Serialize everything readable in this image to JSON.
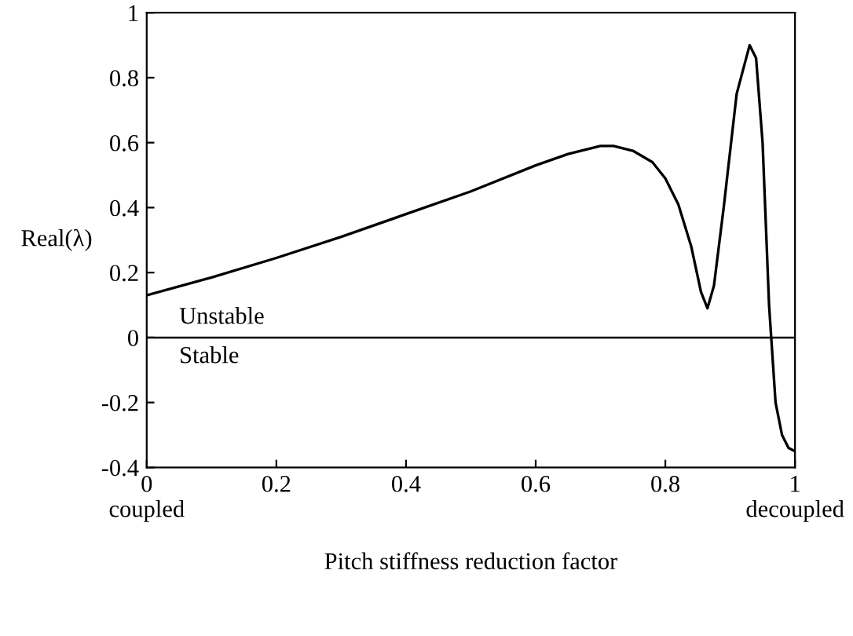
{
  "chart_data": {
    "type": "line",
    "xlabel": "Pitch stiffness reduction factor",
    "ylabel": "Real(λ)",
    "x": [
      0,
      0.1,
      0.2,
      0.3,
      0.4,
      0.5,
      0.6,
      0.65,
      0.7,
      0.72,
      0.75,
      0.78,
      0.8,
      0.82,
      0.84,
      0.855,
      0.865,
      0.875,
      0.89,
      0.91,
      0.93,
      0.94,
      0.95,
      0.96,
      0.965,
      0.97,
      0.98,
      0.99,
      1.0
    ],
    "series": [
      {
        "color": "#000000",
        "values": [
          0.13,
          0.185,
          0.245,
          0.31,
          0.38,
          0.45,
          0.53,
          0.565,
          0.59,
          0.59,
          0.575,
          0.54,
          0.49,
          0.41,
          0.28,
          0.14,
          0.09,
          0.16,
          0.4,
          0.75,
          0.9,
          0.86,
          0.6,
          0.1,
          -0.05,
          -0.2,
          -0.3,
          -0.34,
          -0.35
        ]
      }
    ],
    "xlim": [
      0,
      1
    ],
    "ylim": [
      -0.4,
      1
    ],
    "xticks": [
      {
        "value": 0,
        "label": "0\ncoupled"
      },
      0.2,
      0.4,
      0.6,
      0.8,
      {
        "value": 1,
        "label": "1\ndecoupled"
      }
    ],
    "yticks": [
      -0.4,
      -0.2,
      0,
      0.2,
      0.4,
      0.6,
      0.8,
      1
    ],
    "ref_lines": [
      {
        "axis": "y",
        "value": 0,
        "color": "#000000"
      }
    ],
    "annotations": [
      "Unstable",
      "Stable"
    ],
    "grid": false,
    "legend": false,
    "marker": "none",
    "line_style": "solid"
  }
}
